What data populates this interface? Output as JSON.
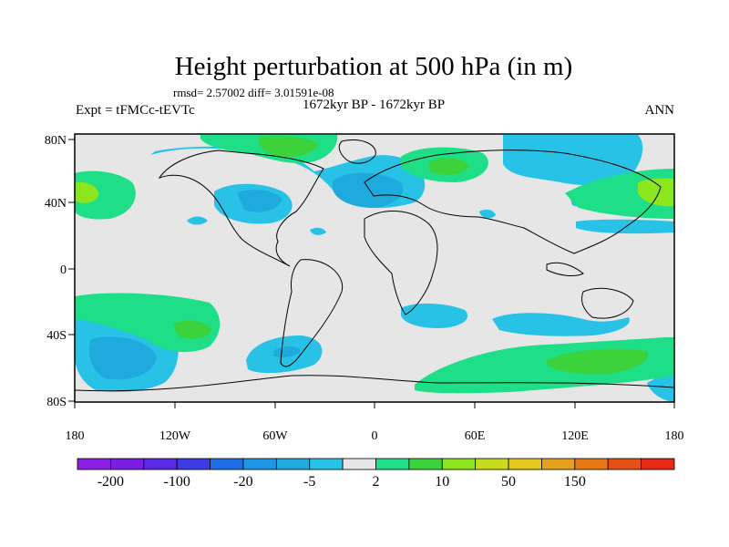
{
  "title": "Height perturbation at 500 hPa (in m)",
  "stats": "rmsd= 2.57002 diff= 3.01591e-08",
  "left_label": "Expt = tFMCc-tEVTc",
  "center_label": "1672kyr BP - 1672kyr BP",
  "right_label": "ANN",
  "lat_ticks": [
    "80N",
    "40N",
    "0",
    "40S",
    "80S"
  ],
  "lon_ticks": [
    "180",
    "120W",
    "60W",
    "0",
    "60E",
    "120E",
    "180"
  ],
  "colorbar": {
    "colors": [
      "#8c1ee6",
      "#7a1ee6",
      "#5a28e6",
      "#3c3ce6",
      "#1e6ee6",
      "#1e96e6",
      "#1eaadc",
      "#28c2e6",
      "#e6e6e6",
      "#1ede87",
      "#3cd23c",
      "#8ce61e",
      "#c8dc1e",
      "#e6c81e",
      "#e6a01e",
      "#e67814",
      "#e65014",
      "#e62814"
    ],
    "labels": [
      "-200",
      "-100",
      "-20",
      "-5",
      "2",
      "10",
      "50",
      "150"
    ]
  },
  "colors": {
    "neutral": "#e6e6e6",
    "light_blue": "#28c2e6",
    "mid_blue": "#1eaadc",
    "green": "#1ede87",
    "light_green": "#8ce61e",
    "bright_green": "#3cd23c",
    "coast": "#000000"
  }
}
